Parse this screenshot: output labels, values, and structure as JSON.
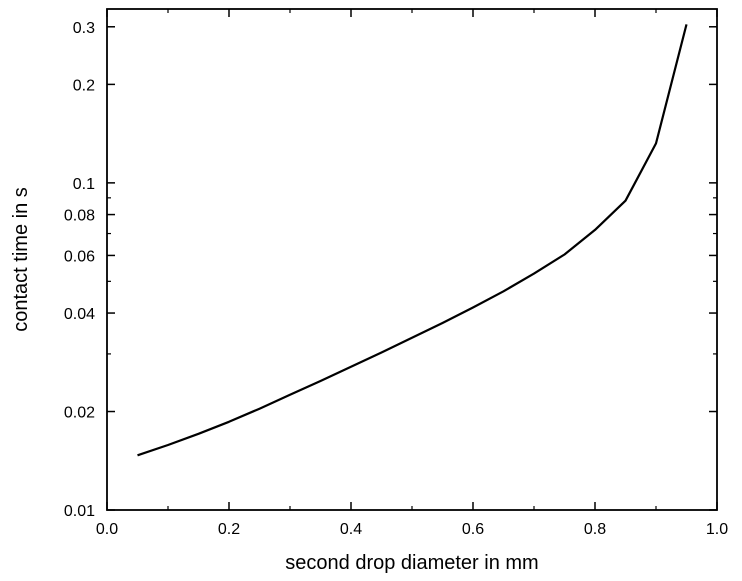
{
  "chart_data": {
    "type": "line",
    "title": "",
    "xlabel": "second drop diameter in mm",
    "ylabel": "contact time in s",
    "xscale": "linear",
    "yscale": "log",
    "xlim": [
      0.0,
      1.0
    ],
    "ylim": [
      0.01,
      0.34
    ],
    "grid": false,
    "x_ticks": [
      0.0,
      0.2,
      0.4,
      0.6,
      0.8,
      1.0
    ],
    "x_tick_labels": [
      "0.0",
      "0.2",
      "0.4",
      "0.6",
      "0.8",
      "1.0"
    ],
    "y_ticks": [
      0.01,
      0.02,
      0.04,
      0.06,
      0.08,
      0.1,
      0.2,
      0.3
    ],
    "y_tick_labels": [
      "0.01",
      "0.02",
      "0.04",
      "0.06",
      "0.08",
      "0.1",
      "0.2",
      "0.3"
    ],
    "series": [
      {
        "color": "#000000",
        "x": [
          0.05,
          0.1,
          0.15,
          0.2,
          0.25,
          0.3,
          0.35,
          0.4,
          0.45,
          0.5,
          0.55,
          0.6,
          0.65,
          0.7,
          0.75,
          0.8,
          0.85,
          0.9,
          0.95
        ],
        "y": [
          0.0147,
          0.0158,
          0.0171,
          0.0186,
          0.0204,
          0.0225,
          0.0248,
          0.0274,
          0.0303,
          0.0336,
          0.0373,
          0.0416,
          0.0466,
          0.0528,
          0.0604,
          0.0718,
          0.0882,
          0.132,
          0.305
        ]
      }
    ]
  }
}
